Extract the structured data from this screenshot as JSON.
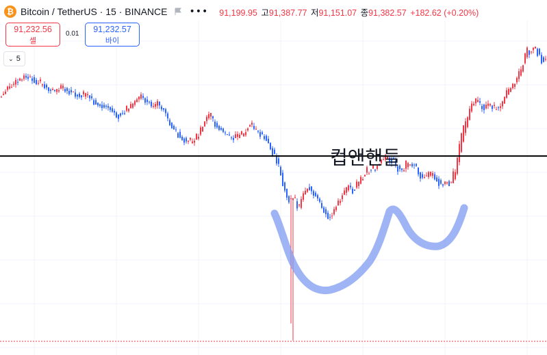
{
  "header": {
    "symbol_title": "Bitcoin / TetherUS · 15 · BINANCE",
    "open_label": "",
    "open": "91,199.95",
    "high_label": "고",
    "high": "91,387.77",
    "low_label": "저",
    "low": "91,151.07",
    "close_label": "종",
    "close": "91,382.57",
    "change": "+182.62 (+0.20%)"
  },
  "trade": {
    "sell_price": "91,232.56",
    "sell_label": "셀",
    "spread": "0.01",
    "buy_price": "91,232.57",
    "buy_label": "바이"
  },
  "indicator_toggle": {
    "count": "5"
  },
  "annotation": {
    "text": "컵앤핸들"
  },
  "colors": {
    "up": "#f23645",
    "down": "#2962ff",
    "highlight": "#7f9bf0",
    "line": "#000000"
  },
  "chart_data": {
    "type": "candlestick",
    "title": "Bitcoin / TetherUS · 15 · BINANCE",
    "annotation": "컵앤핸들",
    "price_range": [
      90400,
      91500
    ],
    "horizontal_line": 91050,
    "points": [
      [
        0,
        91255
      ],
      [
        10,
        91282
      ],
      [
        22,
        91304
      ],
      [
        36,
        91327
      ],
      [
        44,
        91332
      ],
      [
        52,
        91312
      ],
      [
        62,
        91302
      ],
      [
        72,
        91287
      ],
      [
        82,
        91274
      ],
      [
        92,
        91292
      ],
      [
        102,
        91282
      ],
      [
        112,
        91267
      ],
      [
        122,
        91259
      ],
      [
        130,
        91265
      ],
      [
        140,
        91237
      ],
      [
        150,
        91227
      ],
      [
        160,
        91219
      ],
      [
        168,
        91209
      ],
      [
        176,
        91194
      ],
      [
        184,
        91204
      ],
      [
        192,
        91219
      ],
      [
        200,
        91244
      ],
      [
        208,
        91254
      ],
      [
        216,
        91244
      ],
      [
        224,
        91224
      ],
      [
        232,
        91234
      ],
      [
        240,
        91219
      ],
      [
        246,
        91184
      ],
      [
        252,
        91154
      ],
      [
        258,
        91139
      ],
      [
        266,
        91119
      ],
      [
        274,
        91104
      ],
      [
        284,
        91099
      ],
      [
        292,
        91119
      ],
      [
        298,
        91154
      ],
      [
        304,
        91179
      ],
      [
        310,
        91184
      ],
      [
        318,
        91159
      ],
      [
        326,
        91139
      ],
      [
        334,
        91124
      ],
      [
        342,
        91114
      ],
      [
        350,
        91119
      ],
      [
        358,
        91124
      ],
      [
        366,
        91154
      ],
      [
        372,
        91149
      ],
      [
        378,
        91134
      ],
      [
        384,
        91124
      ],
      [
        390,
        91114
      ],
      [
        396,
        91089
      ],
      [
        402,
        91059
      ],
      [
        408,
        91024
      ],
      [
        414,
        90969
      ],
      [
        420,
        90914
      ],
      [
        426,
        90889
      ],
      [
        432,
        90904
      ],
      [
        438,
        90869
      ],
      [
        444,
        90909
      ],
      [
        452,
        90949
      ],
      [
        460,
        90919
      ],
      [
        468,
        90889
      ],
      [
        476,
        90859
      ],
      [
        482,
        90839
      ],
      [
        488,
        90854
      ],
      [
        494,
        90884
      ],
      [
        500,
        90904
      ],
      [
        506,
        90929
      ],
      [
        512,
        90944
      ],
      [
        518,
        90934
      ],
      [
        524,
        90949
      ],
      [
        530,
        90969
      ],
      [
        536,
        90989
      ],
      [
        542,
        90999
      ],
      [
        548,
        91004
      ],
      [
        554,
        91014
      ],
      [
        560,
        91034
      ],
      [
        566,
        91049
      ],
      [
        572,
        91044
      ],
      [
        578,
        91024
      ],
      [
        584,
        91009
      ],
      [
        590,
        90994
      ],
      [
        596,
        91019
      ],
      [
        602,
        91029
      ],
      [
        608,
        91014
      ],
      [
        614,
        90994
      ],
      [
        620,
        90979
      ],
      [
        626,
        90969
      ],
      [
        632,
        90989
      ],
      [
        638,
        90979
      ],
      [
        644,
        90959
      ],
      [
        650,
        90954
      ],
      [
        656,
        90964
      ],
      [
        660,
        90944
      ],
      [
        664,
        90974
      ],
      [
        668,
        90999
      ],
      [
        672,
        91049
      ],
      [
        678,
        91129
      ],
      [
        684,
        91159
      ],
      [
        688,
        91204
      ],
      [
        692,
        91229
      ],
      [
        698,
        91239
      ],
      [
        704,
        91229
      ],
      [
        710,
        91214
      ],
      [
        716,
        91234
      ],
      [
        722,
        91219
      ],
      [
        728,
        91214
      ],
      [
        734,
        91229
      ],
      [
        740,
        91259
      ],
      [
        746,
        91279
      ],
      [
        752,
        91299
      ],
      [
        758,
        91324
      ],
      [
        764,
        91354
      ],
      [
        768,
        91389
      ],
      [
        772,
        91424
      ],
      [
        778,
        91414
      ],
      [
        784,
        91429
      ],
      [
        790,
        91409
      ],
      [
        795,
        91382
      ]
    ]
  }
}
